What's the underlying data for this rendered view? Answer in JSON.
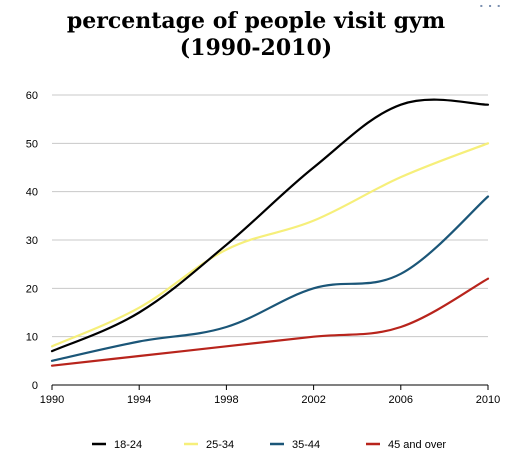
{
  "chart_data": {
    "type": "line",
    "title": "percentage of people visit gym",
    "subtitle": "(1990-2010)",
    "xlabel": "",
    "ylabel": "",
    "x": [
      1990,
      1994,
      1998,
      2002,
      2006,
      2010
    ],
    "xlim": [
      1990,
      2010
    ],
    "ylim": [
      0,
      60
    ],
    "yticks": [
      0,
      10,
      20,
      30,
      40,
      50,
      60
    ],
    "grid": true,
    "legend_position": "bottom",
    "series": [
      {
        "name": "18-24",
        "color": "#000000",
        "values": [
          7,
          15,
          29,
          45,
          58,
          58
        ]
      },
      {
        "name": "25-34",
        "color": "#f6ef7a",
        "values": [
          8,
          16,
          28,
          34,
          43,
          50
        ]
      },
      {
        "name": "35-44",
        "color": "#1b5678",
        "values": [
          5,
          9,
          12,
          20,
          23,
          39
        ]
      },
      {
        "name": "45 and over",
        "color": "#b8241c",
        "values": [
          4,
          6,
          8,
          10,
          12,
          22
        ]
      }
    ]
  }
}
